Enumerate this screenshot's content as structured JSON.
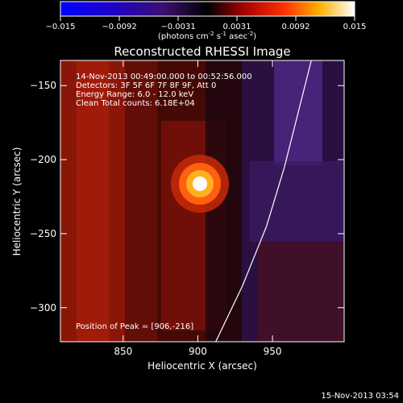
{
  "colorbar": {
    "ticks": [
      "-0.015",
      "-0.0092",
      "-0.0031",
      "0.0031",
      "0.0092",
      "0.015"
    ],
    "unit_prefix": "(photons cm",
    "unit_exp1": "-2",
    "unit_mid": " s",
    "unit_exp2": "-1",
    "unit_mid2": " asec",
    "unit_exp3": "-2",
    "unit_suffix": ")"
  },
  "plot": {
    "title": "Reconstructed RHESSI Image",
    "info_lines": [
      "14-Nov-2013 00:49:00.000 to 00:52:56.000",
      "Detectors: 3F 5F 6F 7F 8F 9F, Att 0",
      "Energy Range: 6.0 - 12.0 keV",
      "Clean     Total counts: 6.18E+04"
    ],
    "peak_text": "Position of Peak = [906,-216]",
    "footer_timestamp": "15-Nov-2013 03:54"
  },
  "chart_data": {
    "type": "heatmap",
    "title": "Reconstructed RHESSI Image",
    "xlabel": "Heliocentric X (arcsec)",
    "ylabel": "Heliocentric Y (arcsec)",
    "xlim": [
      808,
      998
    ],
    "ylim": [
      -323,
      -133
    ],
    "x_ticks": [
      850,
      900,
      950
    ],
    "y_ticks": [
      -150,
      -200,
      -250,
      -300
    ],
    "colorbar_range": [
      -0.015,
      0.015
    ],
    "colormap": "black-blue-purple-red-yellow-white",
    "peak": {
      "x": 906,
      "y": -216
    },
    "limb_curve_points": [
      [
        912,
        -323
      ],
      [
        930,
        -285
      ],
      [
        946,
        -245
      ],
      [
        958,
        -205
      ],
      [
        968,
        -165
      ],
      [
        976,
        -133
      ]
    ],
    "colors": {
      "axis": "#ffffff",
      "limb": "#ffffff"
    }
  }
}
